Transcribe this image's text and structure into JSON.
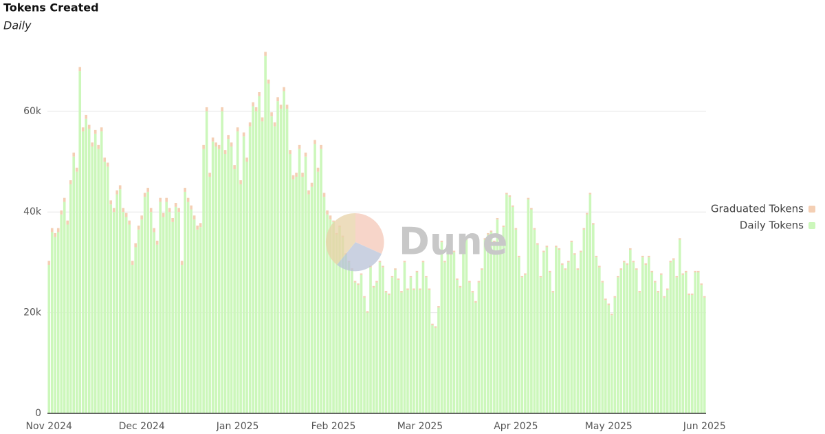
{
  "chart_data": {
    "type": "stacked_bar",
    "title": "Tokens Created",
    "subtitle": "Daily",
    "watermark": "Dune",
    "categories": [
      "Nov 2024",
      null,
      null,
      null,
      null,
      null,
      null,
      null,
      null,
      null,
      null,
      null,
      null,
      null,
      null,
      null,
      null,
      null,
      null,
      null,
      null,
      null,
      null,
      null,
      null,
      null,
      null,
      null,
      null,
      null,
      "Dec 2024",
      null,
      null,
      null,
      null,
      null,
      null,
      null,
      null,
      null,
      null,
      null,
      null,
      null,
      null,
      null,
      null,
      null,
      null,
      null,
      null,
      null,
      null,
      null,
      null,
      null,
      null,
      null,
      null,
      null,
      null,
      "Jan 2025",
      null,
      null,
      null,
      null,
      null,
      null,
      null,
      null,
      null,
      null,
      null,
      null,
      null,
      null,
      null,
      null,
      null,
      null,
      null,
      null,
      null,
      null,
      null,
      null,
      null,
      null,
      null,
      null,
      null,
      null,
      "Feb 2025",
      null,
      null,
      null,
      null,
      null,
      null,
      null,
      null,
      null,
      null,
      null,
      null,
      null,
      null,
      null,
      null,
      null,
      null,
      null,
      null,
      null,
      null,
      null,
      null,
      null,
      null,
      null,
      "Mar 2025",
      null,
      null,
      null,
      null,
      null,
      null,
      null,
      null,
      null,
      null,
      null,
      null,
      null,
      null,
      null,
      null,
      null,
      null,
      null,
      null,
      null,
      null,
      null,
      null,
      null,
      null,
      null,
      null,
      null,
      null,
      "Apr 2025",
      null,
      null,
      null,
      null,
      null,
      null,
      null,
      null,
      null,
      null,
      null,
      null,
      null,
      null,
      null,
      null,
      null,
      null,
      null,
      null,
      null,
      null,
      null,
      null,
      null,
      null,
      null,
      null,
      null,
      "May 2025",
      null,
      null,
      null,
      null,
      null,
      null,
      null,
      null,
      null,
      null,
      null,
      null,
      null,
      null,
      null,
      null,
      null,
      null,
      null,
      null,
      null,
      null,
      null,
      null,
      null,
      null,
      null,
      null,
      null,
      null,
      "Jun 2025"
    ],
    "series": [
      {
        "name": "Graduated Tokens",
        "color": "#f4cfb4",
        "values": [
          800,
          800,
          800,
          800,
          800,
          800,
          800,
          800,
          800,
          800,
          800,
          800,
          800,
          800,
          800,
          800,
          800,
          800,
          800,
          800,
          800,
          800,
          800,
          800,
          800,
          800,
          800,
          800,
          800,
          800,
          800,
          800,
          800,
          800,
          800,
          800,
          800,
          800,
          800,
          800,
          800,
          800,
          800,
          800,
          800,
          800,
          800,
          800,
          800,
          800,
          800,
          800,
          800,
          800,
          800,
          800,
          800,
          800,
          800,
          800,
          800,
          800,
          800,
          800,
          800,
          800,
          800,
          800,
          800,
          800,
          800,
          800,
          800,
          800,
          800,
          800,
          800,
          800,
          800,
          800,
          800,
          800,
          800,
          800,
          800,
          800,
          800,
          800,
          800,
          800,
          800,
          800,
          300,
          300,
          300,
          300,
          300,
          300,
          300,
          300,
          300,
          300,
          300,
          300,
          300,
          300,
          300,
          300,
          300,
          300,
          300,
          300,
          300,
          300,
          300,
          300,
          300,
          300,
          300,
          300,
          300,
          300,
          300,
          300,
          300,
          300,
          300,
          300,
          300,
          300,
          300,
          300,
          300,
          300,
          300,
          300,
          300,
          300,
          300,
          300,
          300,
          300,
          300,
          300,
          300,
          300,
          300,
          300,
          300,
          300,
          300,
          300,
          300,
          300,
          300,
          300,
          300,
          300,
          300,
          300,
          300,
          300,
          300,
          300,
          300,
          300,
          300,
          300,
          300,
          300,
          300,
          300,
          300,
          300,
          300,
          300,
          300,
          300,
          300,
          300,
          300,
          300,
          300,
          300,
          300,
          300,
          300,
          300,
          300,
          300,
          300,
          300,
          300,
          300,
          300,
          300,
          300,
          300,
          300,
          300,
          300,
          300,
          300,
          300,
          300,
          300,
          300,
          300,
          300,
          300,
          300,
          300,
          300
        ]
      },
      {
        "name": "Daily Tokens",
        "color": "#ccf7bb",
        "values": [
          29500,
          36000,
          35000,
          36000,
          39500,
          42000,
          37500,
          45500,
          51000,
          48000,
          68000,
          56000,
          58500,
          56500,
          53000,
          55500,
          52500,
          56000,
          50000,
          49000,
          41500,
          40000,
          43500,
          44500,
          40000,
          39000,
          37500,
          29500,
          33000,
          36500,
          38500,
          43000,
          44000,
          40000,
          36000,
          33500,
          42000,
          39000,
          42000,
          40000,
          38000,
          41000,
          40000,
          29500,
          44000,
          42000,
          40500,
          38500,
          36500,
          37000,
          52500,
          60000,
          47000,
          54000,
          53000,
          52500,
          60000,
          51500,
          54500,
          53000,
          48500,
          56000,
          45500,
          55000,
          50000,
          57000,
          61000,
          60000,
          63000,
          58000,
          71000,
          65500,
          59000,
          57000,
          62000,
          60500,
          64000,
          60500,
          51500,
          46500,
          47000,
          52500,
          47000,
          51000,
          43500,
          45000,
          53500,
          48000,
          52500,
          43000,
          39500,
          38500,
          38000,
          35500,
          37000,
          35000,
          31500,
          30000,
          28500,
          26000,
          25500,
          27500,
          23000,
          20000,
          29000,
          25000,
          26000,
          30000,
          29000,
          24000,
          23500,
          27000,
          28500,
          26500,
          24000,
          30000,
          24500,
          27000,
          24500,
          28000,
          24500,
          30000,
          27000,
          24500,
          17500,
          17000,
          21000,
          34000,
          30000,
          33000,
          31500,
          32000,
          26500,
          25000,
          32500,
          34500,
          26000,
          24000,
          22000,
          26000,
          28500,
          34500,
          35500,
          36000,
          34000,
          38500,
          35000,
          37000,
          43500,
          43000,
          41000,
          36500,
          31000,
          27000,
          27500,
          42500,
          40500,
          36500,
          33500,
          27000,
          32000,
          33000,
          28000,
          24000,
          33000,
          32500,
          29500,
          28500,
          30000,
          34000,
          31500,
          28500,
          32000,
          36500,
          39500,
          43500,
          37500,
          31000,
          29000,
          26000,
          22500,
          21500,
          19500,
          23000,
          27000,
          28500,
          30000,
          29500,
          32500,
          30000,
          28500,
          24000,
          31000,
          29500,
          31000,
          28000,
          26000,
          24000,
          27500,
          23000,
          24500,
          30000,
          30500,
          27000,
          34500,
          27500,
          28000,
          23500,
          23500,
          28000,
          28000,
          25500,
          23000
        ]
      }
    ],
    "ylim": [
      0,
      75000
    ],
    "yticks": [
      0,
      {
        "value": 20000,
        "label": "20k"
      },
      {
        "value": 40000,
        "label": "40k"
      },
      {
        "value": 60000,
        "label": "60k"
      }
    ],
    "grid": true,
    "legend": "right"
  }
}
